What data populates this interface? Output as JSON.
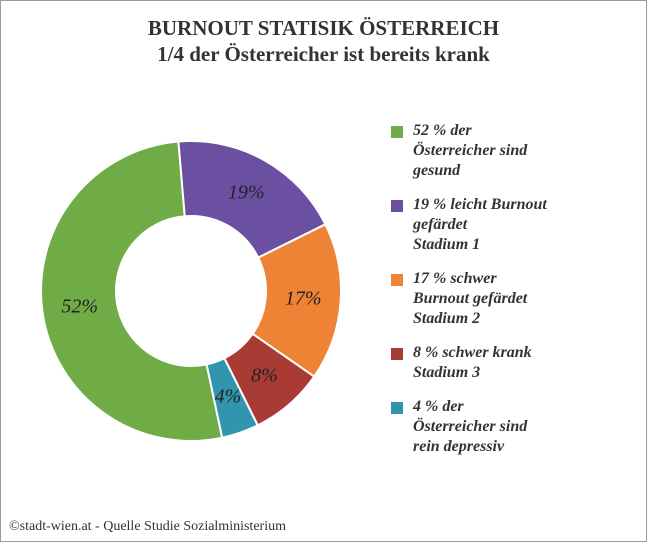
{
  "title": {
    "line1": "BURNOUT STATISIK ÖSTERREICH",
    "line2": "1/4 der Österreicher ist bereits krank",
    "fontsize": 21,
    "color": "#333333"
  },
  "chart": {
    "type": "donut",
    "background_color": "#ffffff",
    "outer_radius": 150,
    "inner_radius": 75,
    "start_angle_deg": 78,
    "direction": "clockwise",
    "label_fontsize": 20,
    "label_color": "#222222",
    "slices": [
      {
        "value": 52,
        "label": "52%",
        "color": "#70ac46"
      },
      {
        "value": 19,
        "label": "19%",
        "color": "#6b4fa0"
      },
      {
        "value": 17,
        "label": "17%",
        "color": "#ee8336"
      },
      {
        "value": 8,
        "label": "8%",
        "color": "#a83c34"
      },
      {
        "value": 4,
        "label": "4%",
        "color": "#3195ae"
      }
    ]
  },
  "legend": {
    "fontsize": 16,
    "swatch_size": 12,
    "items": [
      {
        "color": "#70ac46",
        "text": "52 % der\nÖsterreicher sind\ngesund"
      },
      {
        "color": "#6b4fa0",
        "text": "19 % leicht Burnout\ngefärdet\nStadium 1"
      },
      {
        "color": "#ee8336",
        "text": "17 % schwer\nBurnout gefärdet\nStadium 2"
      },
      {
        "color": "#a83c34",
        "text": "8 % schwer krank\nStadium 3"
      },
      {
        "color": "#3195ae",
        "text": "4 % der\nÖsterreicher sind\nrein depressiv"
      }
    ]
  },
  "footer": {
    "text": "©stadt-wien.at - Quelle Studie Sozialministerium",
    "fontsize": 14,
    "color": "#333333"
  }
}
